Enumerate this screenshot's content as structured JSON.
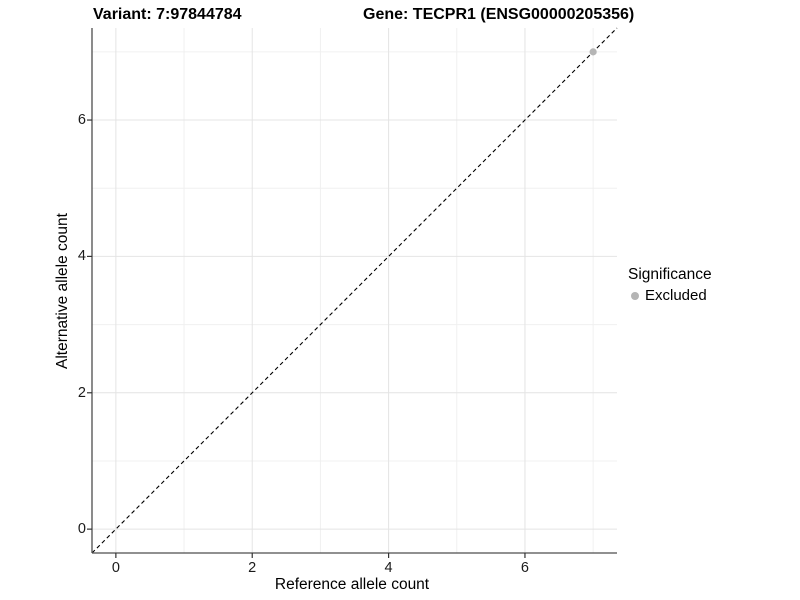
{
  "header": {
    "variant_title": "Variant: 7:97844784",
    "gene_title": "Gene: TECPR1 (ENSG00000205356)"
  },
  "legend": {
    "title": "Significance",
    "items": [
      {
        "label": "Excluded",
        "color": "#b5b5b5"
      }
    ]
  },
  "chart_data": {
    "type": "scatter",
    "title": "Variant: 7:97844784 — Gene: TECPR1 (ENSG00000205356)",
    "xlabel": "Reference allele count",
    "ylabel": "Alternative allele count",
    "xlim": [
      -0.35,
      7.35
    ],
    "ylim": [
      -0.35,
      7.35
    ],
    "x_major_ticks": [
      0,
      2,
      4,
      6
    ],
    "y_major_ticks": [
      0,
      2,
      4,
      6
    ],
    "x_minor_ticks": [
      1,
      3,
      5,
      7
    ],
    "y_minor_ticks": [
      1,
      3,
      5,
      7
    ],
    "x_tick_labels": [
      "0",
      "2",
      "4",
      "6"
    ],
    "y_tick_labels": [
      "0",
      "2",
      "4",
      "6"
    ],
    "grid": true,
    "legend_position": "right",
    "series": [
      {
        "name": "Excluded",
        "color": "#b5b5b5",
        "points": [
          [
            7,
            7
          ]
        ]
      }
    ],
    "reference_line": {
      "type": "identity",
      "equation": "y = x",
      "style": "dashed",
      "color": "#000000"
    },
    "colors": {
      "grid_major": "#e4e4e4",
      "grid_minor": "#f0f0f0",
      "axis_line": "#4d4d4d",
      "tick_mark": "#333333",
      "panel_background": "#ffffff"
    }
  }
}
